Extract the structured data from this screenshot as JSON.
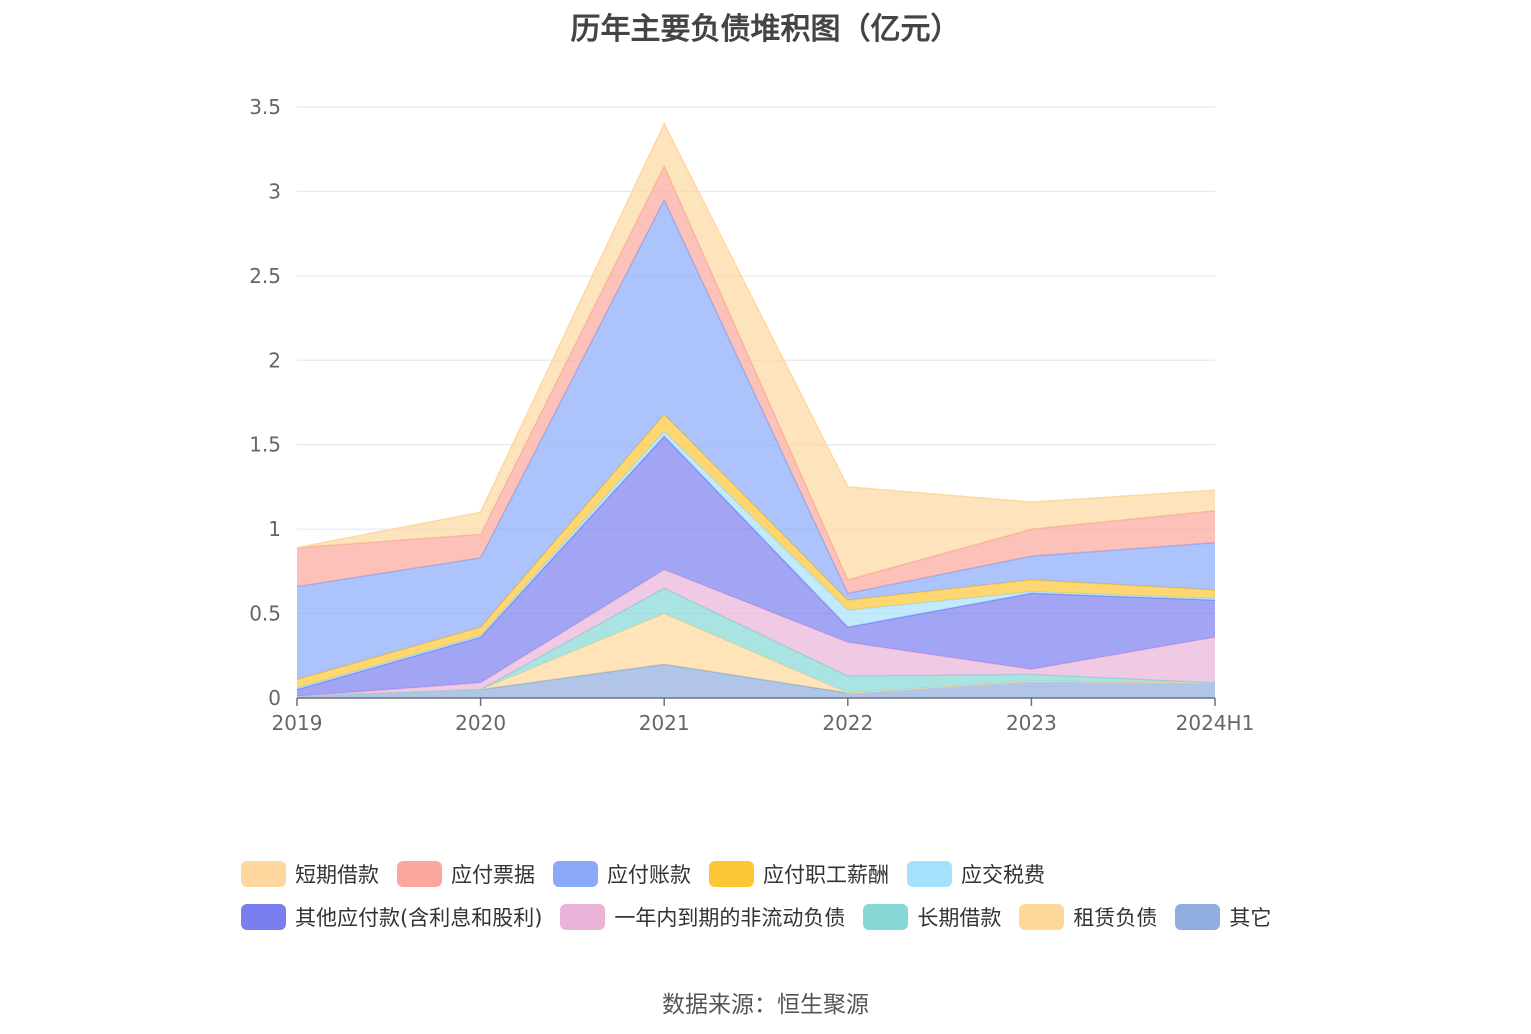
{
  "title": "历年主要负债堆积图（亿元）",
  "source": "数据来源：恒生聚源",
  "chart_data": {
    "type": "area",
    "stacked": true,
    "categories": [
      "2019",
      "2020",
      "2021",
      "2022",
      "2023",
      "2024H1"
    ],
    "ylim": [
      0,
      3.5
    ],
    "yticks": [
      "0",
      "0.5",
      "1",
      "1.5",
      "2",
      "2.5",
      "3",
      "3.5"
    ],
    "grid": true,
    "legend_position": "bottom",
    "series": [
      {
        "name": "其它",
        "color": "#8fadde",
        "values": [
          0.01,
          0.05,
          0.2,
          0.03,
          0.1,
          0.09
        ]
      },
      {
        "name": "租赁负债",
        "color": "#fdd89a",
        "values": [
          0.0,
          0.0,
          0.3,
          0.0,
          0.0,
          0.0
        ]
      },
      {
        "name": "长期借款",
        "color": "#86d8d5",
        "values": [
          0.0,
          0.0,
          0.15,
          0.1,
          0.04,
          0.0
        ]
      },
      {
        "name": "一年内到期的非流动负债",
        "color": "#e9b4d8",
        "values": [
          0.0,
          0.04,
          0.11,
          0.2,
          0.03,
          0.27
        ]
      },
      {
        "name": "其他应付款(含利息和股利)",
        "color": "#7b7ef0",
        "values": [
          0.04,
          0.27,
          0.79,
          0.09,
          0.45,
          0.22
        ]
      },
      {
        "name": "应交税费",
        "color": "#a6e1fb",
        "values": [
          0.01,
          0.01,
          0.03,
          0.1,
          0.01,
          0.01
        ]
      },
      {
        "name": "应付职工薪酬",
        "color": "#fdc636",
        "values": [
          0.05,
          0.05,
          0.1,
          0.06,
          0.07,
          0.05
        ]
      },
      {
        "name": "应付账款",
        "color": "#8aa9fb",
        "values": [
          0.55,
          0.41,
          1.27,
          0.04,
          0.14,
          0.28
        ]
      },
      {
        "name": "应付票据",
        "color": "#fba89c",
        "values": [
          0.23,
          0.14,
          0.2,
          0.08,
          0.16,
          0.19
        ]
      },
      {
        "name": "短期借款",
        "color": "#fed89f",
        "values": [
          0.0,
          0.13,
          0.25,
          0.55,
          0.16,
          0.12
        ]
      }
    ]
  },
  "legend_rows": [
    [
      {
        "name": "短期借款",
        "color": "#fed89f"
      },
      {
        "name": "应付票据",
        "color": "#fba89c"
      },
      {
        "name": "应付账款",
        "color": "#8aa9fb"
      },
      {
        "name": "应付职工薪酬",
        "color": "#fdc636"
      },
      {
        "name": "应交税费",
        "color": "#a6e1fb"
      }
    ],
    [
      {
        "name": "其他应付款(含利息和股利)",
        "color": "#7b7ef0"
      },
      {
        "name": "一年内到期的非流动负债",
        "color": "#e9b4d8"
      },
      {
        "name": "长期借款",
        "color": "#86d8d5"
      },
      {
        "name": "租赁负债",
        "color": "#fdd89a"
      },
      {
        "name": "其它",
        "color": "#8fadde"
      }
    ]
  ]
}
